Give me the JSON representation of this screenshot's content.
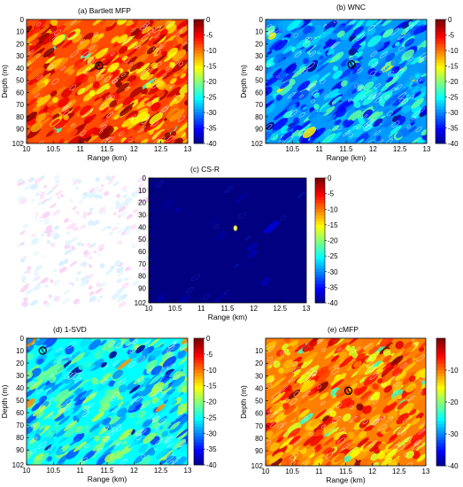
{
  "figure": {
    "panels": [
      {
        "key": "a",
        "title": "(a) Bartlett MFP",
        "xlabel": "Range (km)",
        "ylabel": "Depth (m)"
      },
      {
        "key": "b",
        "title": "(b) WNC",
        "xlabel": "Range (km)",
        "ylabel": "Depth (m)"
      },
      {
        "key": "c",
        "title": "(c) CS-R",
        "xlabel": "Range (km)",
        "ylabel": ""
      },
      {
        "key": "d",
        "title": "(d) 1-SVD",
        "xlabel": "Range (km)",
        "ylabel": "Depth (m)"
      },
      {
        "key": "e",
        "title": "(e) cMFP",
        "xlabel": "Range (km)",
        "ylabel": "Depth (m)"
      }
    ]
  },
  "chart_data": [
    {
      "type": "heatmap",
      "title": "(a) Bartlett MFP",
      "xlabel": "Range (km)",
      "ylabel": "Depth (m)",
      "xlim": [
        10,
        13
      ],
      "ylim": [
        0,
        102
      ],
      "x_ticks": [
        "10",
        "10.5",
        "11",
        "11.5",
        "12",
        "12.5",
        "13"
      ],
      "y_ticks": [
        "0",
        "10",
        "20",
        "30",
        "40",
        "50",
        "60",
        "70",
        "80",
        "90",
        "102"
      ],
      "colorbar": {
        "range": [
          -40,
          0
        ],
        "ticks": [
          "0",
          "-5",
          "-10",
          "-15",
          "-20",
          "-25",
          "-30",
          "-35",
          "-40"
        ]
      },
      "dominant_level_db": -8,
      "variation_db": 8,
      "marker": {
        "range_km": 11.35,
        "depth_m": 38
      }
    },
    {
      "type": "heatmap",
      "title": "(b) WNC",
      "xlabel": "Range (km)",
      "ylabel": "Depth (m)",
      "xlim": [
        10,
        13
      ],
      "ylim": [
        0,
        102
      ],
      "x_ticks": [
        "10.5",
        "11",
        "11.5",
        "12",
        "12.5",
        "13"
      ],
      "y_ticks": [
        "0",
        "10",
        "20",
        "30",
        "40",
        "50",
        "60",
        "70",
        "80",
        "90",
        "102"
      ],
      "colorbar": {
        "range": [
          -40,
          0
        ],
        "ticks": [
          "0",
          "-5",
          "-10",
          "-15",
          "-20",
          "-25",
          "-30",
          "-35",
          "-40"
        ]
      },
      "dominant_level_db": -29,
      "variation_db": 8,
      "marker": {
        "range_km": 11.6,
        "depth_m": 37
      }
    },
    {
      "type": "heatmap",
      "title": "(c) CS-R",
      "xlabel": "Range (km)",
      "ylabel": "",
      "xlim": [
        10,
        13
      ],
      "ylim": [
        0,
        102
      ],
      "x_ticks": [
        "10",
        "10.5",
        "11",
        "11.5",
        "12",
        "12.5",
        "13"
      ],
      "y_ticks": [
        "0",
        "10",
        "20",
        "30",
        "40",
        "50",
        "60",
        "70",
        "80",
        "90",
        "102"
      ],
      "colorbar": {
        "range": [
          -40,
          0
        ],
        "ticks": [
          "0",
          "-5",
          "-10",
          "-15",
          "-20",
          "-25",
          "-30",
          "-35",
          "-40"
        ]
      },
      "dominant_level_db": -40,
      "variation_db": 2,
      "marker": {
        "range_km": 11.65,
        "depth_m": 41
      }
    },
    {
      "type": "heatmap",
      "title": "(d) 1-SVD",
      "xlabel": "Range (km)",
      "ylabel": "Depth (m)",
      "xlim": [
        10,
        13
      ],
      "ylim": [
        0,
        102
      ],
      "x_ticks": [
        "10",
        "10.5",
        "11",
        "11.5",
        "12",
        "12.5",
        "13"
      ],
      "y_ticks": [
        "0",
        "10",
        "20",
        "30",
        "40",
        "50",
        "60",
        "70",
        "80",
        "90",
        "102"
      ],
      "colorbar": {
        "range": [
          -40,
          0
        ],
        "ticks": [
          "0",
          "-5",
          "-10",
          "-15",
          "-20",
          "-25",
          "-30",
          "-35",
          "-40"
        ]
      },
      "dominant_level_db": -25,
      "variation_db": 8,
      "marker": {
        "range_km": 10.3,
        "depth_m": 10
      }
    },
    {
      "type": "heatmap",
      "title": "(e) cMFP",
      "xlabel": "Range (km)",
      "ylabel": "Depth (m)",
      "xlim": [
        10,
        13
      ],
      "ylim": [
        0,
        102
      ],
      "x_ticks": [
        "10",
        "10.5",
        "11",
        "11.5",
        "12",
        "12.5",
        "13"
      ],
      "y_ticks": [
        "10",
        "20",
        "30",
        "40",
        "50",
        "60",
        "70",
        "80",
        "90",
        "102"
      ],
      "colorbar": {
        "range": [
          -40,
          0
        ],
        "ticks": [
          "-10",
          "-20",
          "-30",
          "-40"
        ]
      },
      "dominant_level_db": -10,
      "variation_db": 7,
      "marker": {
        "range_km": 11.55,
        "depth_m": 42
      }
    }
  ]
}
